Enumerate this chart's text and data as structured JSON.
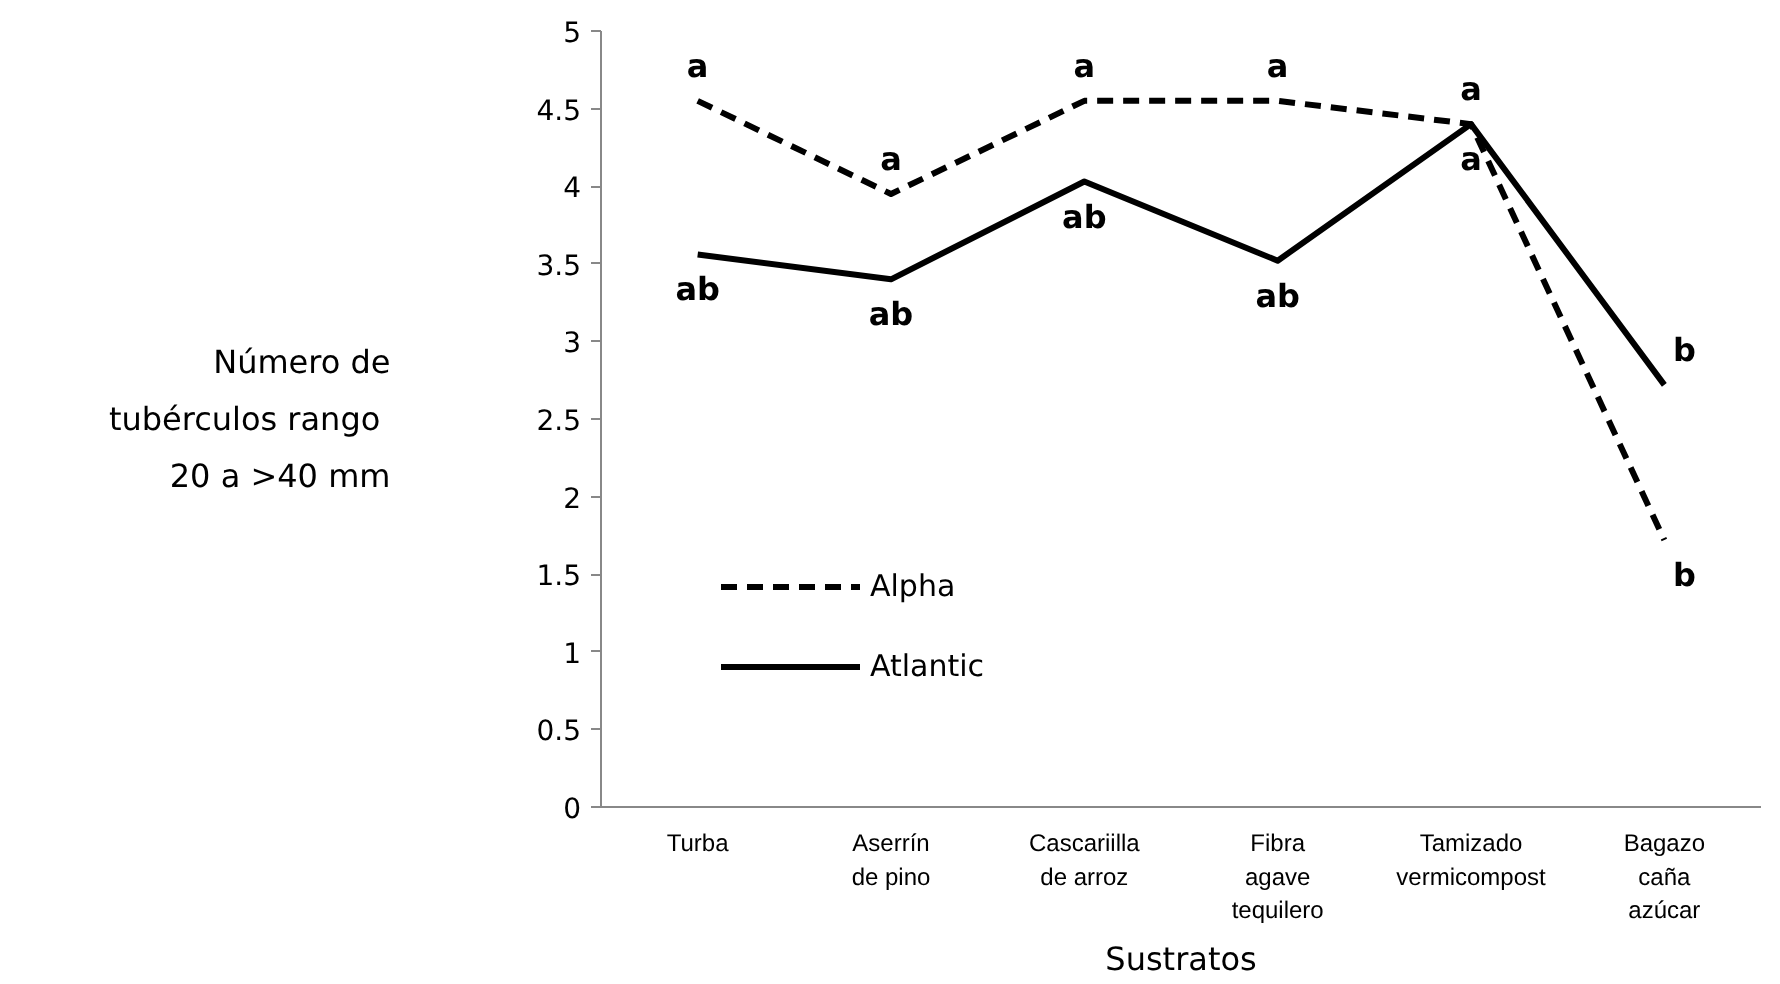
{
  "chart_data": {
    "type": "line",
    "xlabel": "Sustratos",
    "ylabel": "Número de\ntubérculos  rango\n20 a >40 mm",
    "categories": [
      "Turba",
      "Aserrín de pino",
      "Cascariilla de arroz",
      "Fibra agave tequilero",
      "Tamizado vermicompost",
      "Bagazo caña azúcar"
    ],
    "series": [
      {
        "name": "Alpha",
        "color": "#000000",
        "line_style": "dashed",
        "values": [
          4.55,
          3.95,
          4.55,
          4.55,
          4.4,
          1.72
        ]
      },
      {
        "name": "Atlantic",
        "color": "#000000",
        "line_style": "solid",
        "values": [
          3.56,
          3.4,
          4.03,
          3.52,
          4.4,
          2.72
        ]
      }
    ],
    "ylim": [
      0,
      5
    ],
    "yticks": [
      0,
      0.5,
      1,
      1.5,
      2,
      2.5,
      3,
      3.5,
      4,
      4.5,
      5
    ],
    "grid": false,
    "legend": "left",
    "marker": "none",
    "annotations": [
      {
        "text": "a",
        "x": "Turba",
        "y": 4.55
      },
      {
        "text": "a",
        "x": "Aserrín de pino",
        "y": 3.95
      },
      {
        "text": "a",
        "x": "Cascariilla de arroz",
        "y": 4.55
      },
      {
        "text": "a",
        "x": "Fibra agave tequilero",
        "y": 4.55
      },
      {
        "text": "a",
        "x": "Tamizado vermicompost",
        "y": 4.4
      },
      {
        "text": "b",
        "x": "Bagazo caña azúcar",
        "y": 1.72
      },
      {
        "text": "ab",
        "x": "Turba",
        "y": 3.56
      },
      {
        "text": "ab",
        "x": "Aserrín de pino",
        "y": 3.4
      },
      {
        "text": "ab",
        "x": "Cascariilla de arroz",
        "y": 4.03
      },
      {
        "text": "ab",
        "x": "Fibra agave tequilero",
        "y": 3.52
      },
      {
        "text": "a",
        "x": "Tamizado vermicompost",
        "y": 4.4
      },
      {
        "text": "b",
        "x": "Bagazo caña azúcar",
        "y": 2.72
      }
    ]
  }
}
